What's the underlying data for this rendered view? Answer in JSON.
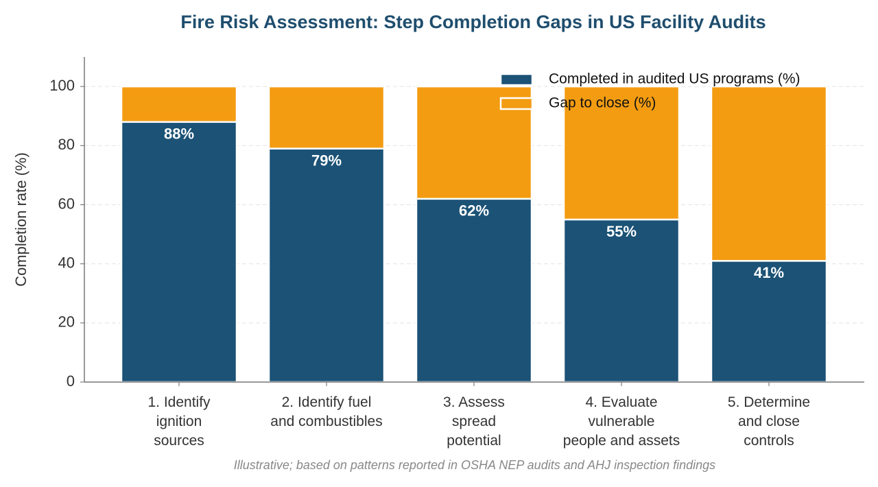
{
  "chart_data": {
    "type": "stacked_bar",
    "title": "Fire Risk Assessment: Step Completion Gaps in US Facility Audits",
    "ylabel": "Completion rate (%)",
    "note": "Illustrative; based on patterns reported in OSHA NEP audits and AHJ inspection findings",
    "categories": [
      "1. Identify\nignition\nsources",
      "2. Identify fuel\nand combustibles",
      "3. Assess\nspread\npotential",
      "4. Evaluate\nvulnerable\npeople and assets",
      "5. Determine\nand close\ncontrols"
    ],
    "series": [
      {
        "name": "Completed in audited US programs (%)",
        "color": "#1b5276",
        "values": [
          88,
          79,
          62,
          55,
          41
        ],
        "value_labels": [
          "88%",
          "79%",
          "62%",
          "55%",
          "41%"
        ]
      },
      {
        "name": "Gap to close (%)",
        "color": "#f39c12",
        "values": [
          12,
          21,
          38,
          45,
          59
        ]
      }
    ],
    "ylim": [
      0,
      110
    ],
    "yticks": [
      0,
      20,
      40,
      60,
      80,
      100
    ],
    "grid": true,
    "legend": "upper right"
  }
}
